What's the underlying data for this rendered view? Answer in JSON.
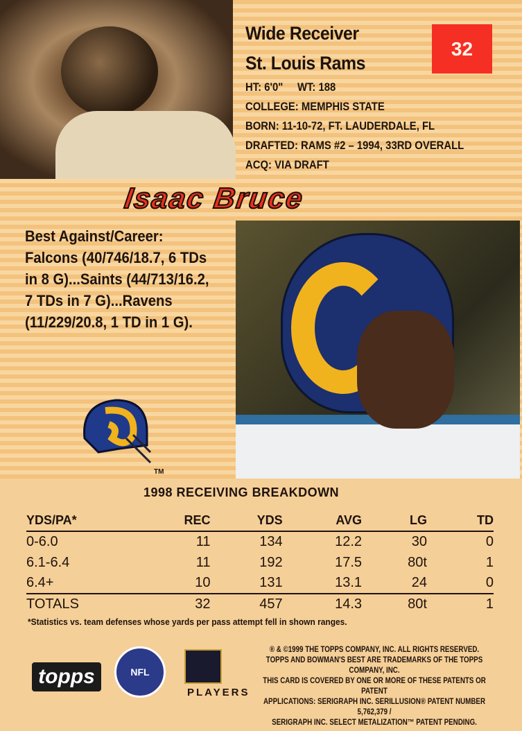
{
  "card": {
    "number": "32",
    "position": "Wide Receiver",
    "team": "St. Louis Rams",
    "player_name": "Isaac Bruce",
    "height_weight": "HT: 6'0\"     WT: 188",
    "college": "COLLEGE: MEMPHIS STATE",
    "born": "BORN: 11-10-72, FT. LAUDERDALE, FL",
    "drafted": "DRAFTED: RAMS #2 – 1994, 33RD OVERALL",
    "acq": "ACQ: VIA DRAFT",
    "best_against": "Best Against/Career: Falcons (40/746/18.7, 6 TDs in 8 G)...Saints (44/713/16.2, 7 TDs in 7 G)...Ravens (11/229/20.8, 1 TD in 1 G).",
    "tm": "TM",
    "number_color": "#f52f24"
  },
  "breakdown": {
    "title": "1998 RECEIVING BREAKDOWN",
    "headers": [
      "YDS/PA*",
      "REC",
      "YDS",
      "AVG",
      "LG",
      "TD"
    ],
    "rows": [
      [
        "0-6.0",
        "11",
        "134",
        "12.2",
        "30",
        "0"
      ],
      [
        "6.1-6.4",
        "11",
        "192",
        "17.5",
        "80t",
        "1"
      ],
      [
        "6.4+",
        "10",
        "131",
        "13.1",
        "24",
        "0"
      ]
    ],
    "totals": [
      "TOTALS",
      "32",
      "457",
      "14.3",
      "80t",
      "1"
    ],
    "footnote": "*Statistics vs. team defenses whose yards per pass attempt fell in shown ranges."
  },
  "legal": [
    "® & ©1999 THE TOPPS COMPANY, INC. ALL RIGHTS RESERVED.",
    "TOPPS AND BOWMAN'S BEST ARE TRADEMARKS OF THE TOPPS COMPANY, INC.",
    "THIS CARD IS COVERED BY ONE OR MORE OF THESE PATENTS OR PATENT",
    "APPLICATIONS: SERIGRAPH INC. SERILLUSION® PATENT NUMBER 5,762,379 /",
    "SERIGRAPH INC. SELECT METALIZATION™ PATENT PENDING."
  ],
  "logos": {
    "topps": "topps",
    "nfl": "NFL",
    "players": "PLAYERS INC"
  }
}
